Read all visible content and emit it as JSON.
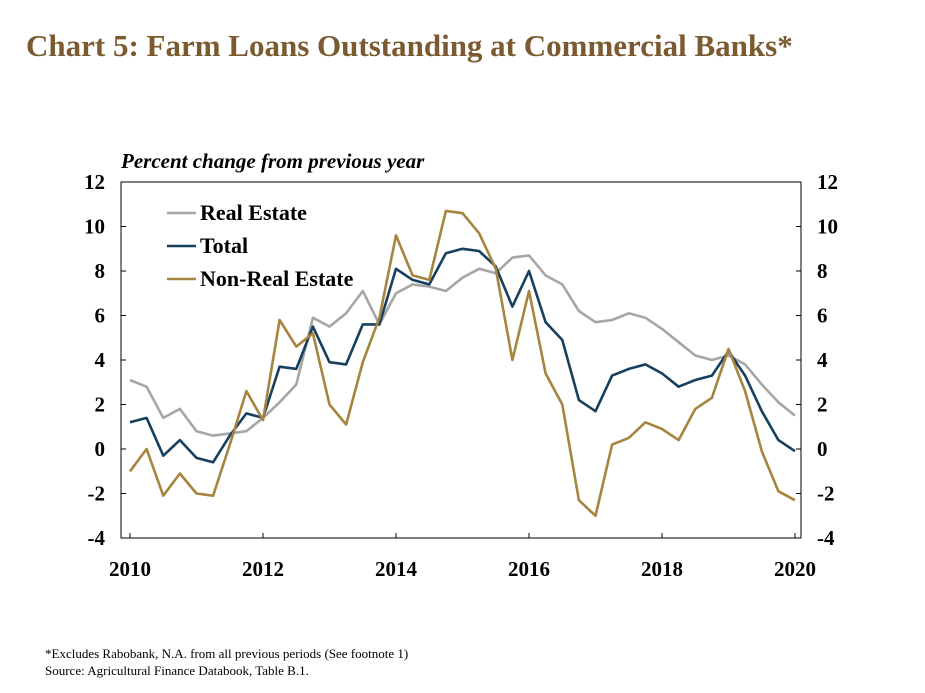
{
  "title": "Chart 5: Farm Loans Outstanding at Commercial Banks*",
  "footnotes": {
    "note": "*Excludes Rabobank, N.A. from all previous periods (See footnote 1)",
    "source": "Source: Agricultural Finance Databook, Table B.1."
  },
  "chart_data": {
    "type": "line",
    "ylabel": "Percent change from previous year",
    "ylim": [
      -4,
      12
    ],
    "yticks": [
      "12",
      "10",
      "8",
      "6",
      "4",
      "2",
      "0",
      "-2",
      "-4"
    ],
    "xlim": [
      2010,
      2020
    ],
    "xticks": [
      "2010",
      "2012",
      "2014",
      "2016",
      "2018",
      "2020"
    ],
    "grid": false,
    "legend_position": "top-left",
    "x": [
      2010.0,
      2010.25,
      2010.5,
      2010.75,
      2011.0,
      2011.25,
      2011.5,
      2011.75,
      2012.0,
      2012.25,
      2012.5,
      2012.75,
      2013.0,
      2013.25,
      2013.5,
      2013.75,
      2014.0,
      2014.25,
      2014.5,
      2014.75,
      2015.0,
      2015.25,
      2015.5,
      2015.75,
      2016.0,
      2016.25,
      2016.5,
      2016.75,
      2017.0,
      2017.25,
      2017.5,
      2017.75,
      2018.0,
      2018.25,
      2018.5,
      2018.75,
      2019.0,
      2019.25,
      2019.5,
      2019.75,
      2020.0
    ],
    "series": [
      {
        "name": "Real Estate",
        "color": "#a6a6a6",
        "values": [
          3.1,
          2.8,
          1.4,
          1.8,
          0.8,
          0.6,
          0.7,
          0.8,
          1.4,
          2.1,
          2.9,
          5.9,
          5.5,
          6.1,
          7.1,
          5.6,
          7.0,
          7.4,
          7.3,
          7.1,
          7.7,
          8.1,
          7.9,
          8.6,
          8.7,
          7.8,
          7.4,
          6.2,
          5.7,
          5.8,
          6.1,
          5.9,
          5.4,
          4.8,
          4.2,
          4.0,
          4.2,
          3.8,
          2.9,
          2.1,
          1.5
        ]
      },
      {
        "name": "Total",
        "color": "#17405e",
        "values": [
          1.2,
          1.4,
          -0.3,
          0.4,
          -0.4,
          -0.6,
          0.6,
          1.6,
          1.4,
          3.7,
          3.6,
          5.5,
          3.9,
          3.8,
          5.6,
          5.6,
          8.1,
          7.6,
          7.4,
          8.8,
          9.0,
          8.9,
          8.2,
          6.4,
          8.0,
          5.7,
          4.9,
          2.2,
          1.7,
          3.3,
          3.6,
          3.8,
          3.4,
          2.8,
          3.1,
          3.3,
          4.4,
          3.3,
          1.7,
          0.4,
          -0.1
        ]
      },
      {
        "name": "Non-Real Estate",
        "color": "#a7843f",
        "values": [
          -1.0,
          0.0,
          -2.1,
          -1.1,
          -2.0,
          -2.1,
          0.2,
          2.6,
          1.3,
          5.8,
          4.6,
          5.2,
          2.0,
          1.1,
          3.9,
          5.9,
          9.6,
          7.8,
          7.6,
          10.7,
          10.6,
          9.7,
          8.1,
          4.0,
          7.1,
          3.4,
          2.0,
          -2.3,
          -3.0,
          0.2,
          0.5,
          1.2,
          0.9,
          0.4,
          1.8,
          2.3,
          4.5,
          2.6,
          -0.1,
          -1.9,
          -2.3
        ]
      }
    ]
  }
}
